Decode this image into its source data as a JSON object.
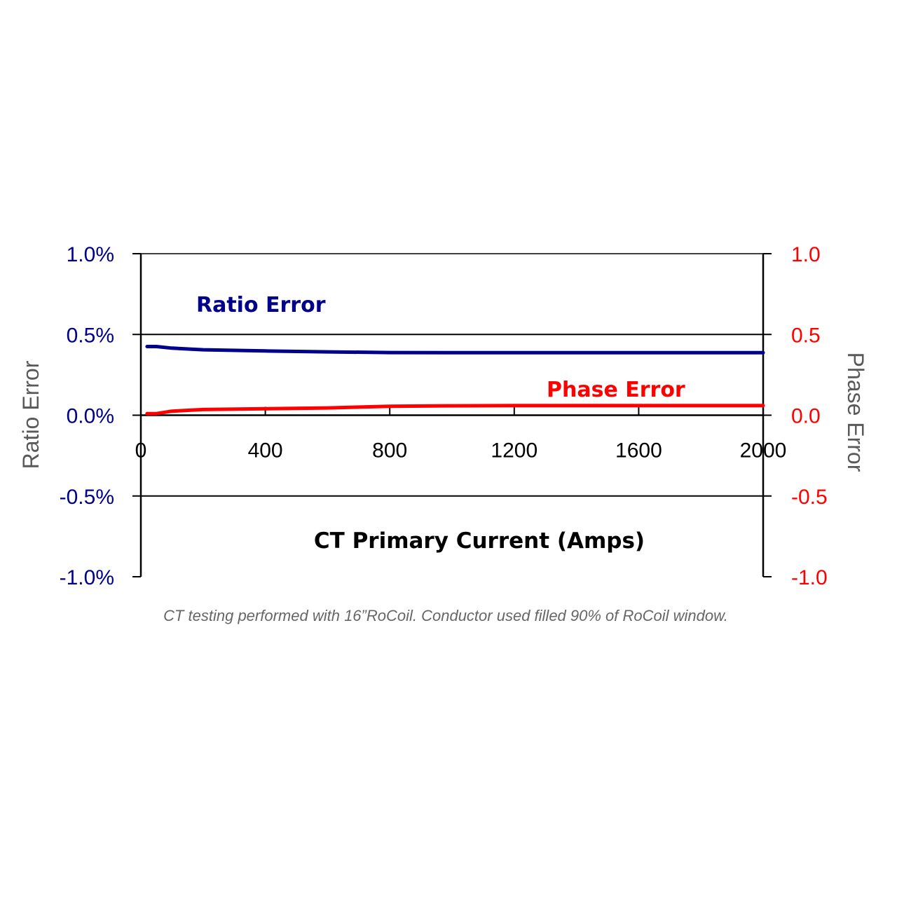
{
  "chart_data": {
    "type": "line",
    "xlabel": "CT Primary Current (Amps)",
    "ylabel": "Ratio Error",
    "y2label": "Phase Error",
    "caption": "CT testing performed with 16”RoCoil. Conductor used filled 90% of RoCoil window.",
    "xlim": [
      0,
      2000
    ],
    "ylim": [
      -1.0,
      1.0
    ],
    "y2lim": [
      -1.0,
      1.0
    ],
    "x_ticks": [
      "0",
      "400",
      "800",
      "1200",
      "1600",
      "2000"
    ],
    "x_tick_values": [
      0,
      400,
      800,
      1200,
      1600,
      2000
    ],
    "y_ticks": [
      "1.0%",
      "0.5%",
      "0.0%",
      "-0.5%",
      "-1.0%"
    ],
    "y_tick_values": [
      1.0,
      0.5,
      0.0,
      -0.5,
      -1.0
    ],
    "y2_ticks": [
      "1.0",
      "0.5",
      "0.0",
      "-0.5",
      "-1.0"
    ],
    "y2_tick_values": [
      1.0,
      0.5,
      0.0,
      -0.5,
      -1.0
    ],
    "gridlines": [
      0.5,
      -0.5
    ],
    "series": [
      {
        "name": "Ratio Error",
        "axis": "left",
        "color": "#00008B",
        "x": [
          20,
          50,
          100,
          200,
          400,
          600,
          800,
          1000,
          1200,
          1600,
          2000
        ],
        "y": [
          0.425,
          0.425,
          0.415,
          0.405,
          0.398,
          0.392,
          0.388,
          0.387,
          0.387,
          0.387,
          0.387
        ]
      },
      {
        "name": "Phase Error",
        "axis": "right",
        "color": "#FF0000",
        "x": [
          20,
          50,
          100,
          200,
          400,
          600,
          800,
          1000,
          1200,
          1600,
          2000
        ],
        "y": [
          0.01,
          0.01,
          0.025,
          0.035,
          0.04,
          0.045,
          0.055,
          0.058,
          0.06,
          0.06,
          0.06
        ]
      }
    ],
    "colors": {
      "left_axis": "#00008B",
      "right_axis": "#FF0000",
      "axis_title": "#595959",
      "grid": "#000000"
    }
  }
}
